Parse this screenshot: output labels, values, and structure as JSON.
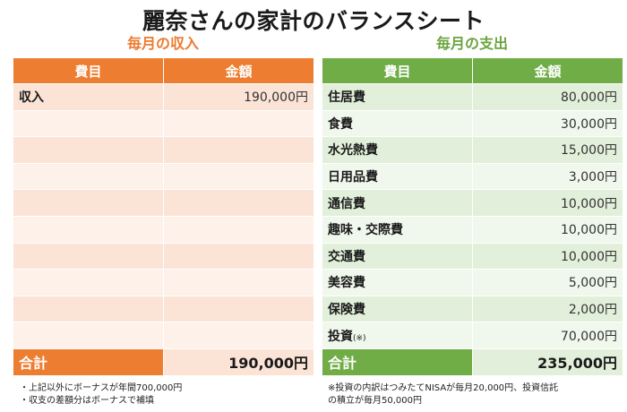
{
  "title": "麗奈さんの家計のバランスシート",
  "income": {
    "heading": "毎月の収入",
    "col_item": "費目",
    "col_amount": "金額",
    "rows": [
      {
        "item": "収入",
        "amount": "190,000円"
      },
      {
        "item": "",
        "amount": ""
      },
      {
        "item": "",
        "amount": ""
      },
      {
        "item": "",
        "amount": ""
      },
      {
        "item": "",
        "amount": ""
      },
      {
        "item": "",
        "amount": ""
      },
      {
        "item": "",
        "amount": ""
      },
      {
        "item": "",
        "amount": ""
      },
      {
        "item": "",
        "amount": ""
      },
      {
        "item": "",
        "amount": ""
      }
    ],
    "total_label": "合計",
    "total_value": "190,000円",
    "notes": [
      "・上記以外にボーナスが年間700,000円",
      "・収支の差額分はボーナスで補填"
    ]
  },
  "expense": {
    "heading": "毎月の支出",
    "col_item": "費目",
    "col_amount": "金額",
    "rows": [
      {
        "item": "住居費",
        "amount": "80,000円"
      },
      {
        "item": "食費",
        "amount": "30,000円"
      },
      {
        "item": "水光熱費",
        "amount": "15,000円"
      },
      {
        "item": "日用品費",
        "amount": "3,000円"
      },
      {
        "item": "通信費",
        "amount": "10,000円"
      },
      {
        "item": "趣味・交際費",
        "amount": "10,000円"
      },
      {
        "item": "交通費",
        "amount": "10,000円"
      },
      {
        "item": "美容費",
        "amount": "5,000円"
      },
      {
        "item": "保険費",
        "amount": "2,000円"
      },
      {
        "item": "投資",
        "item_note": "(※)",
        "amount": "70,000円"
      }
    ],
    "total_label": "合計",
    "total_value": "235,000円",
    "notes": [
      "※投資の内訳はつみたてNISAが毎月20,000円、投資信託",
      "の積立が毎月50,000円"
    ]
  }
}
